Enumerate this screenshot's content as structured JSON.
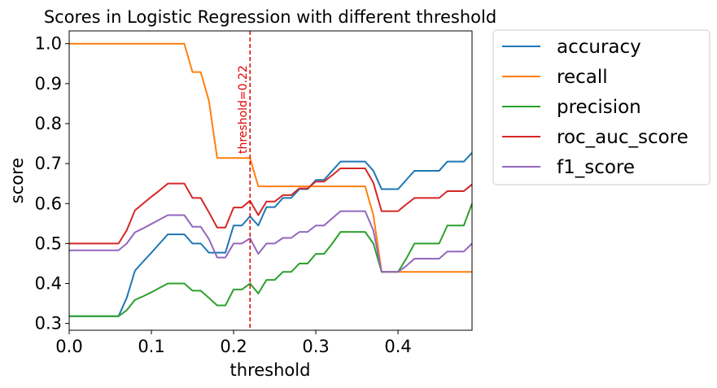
{
  "chart_data": {
    "type": "line",
    "title": "Scores in Logistic Regression with different threshold",
    "xlabel": "threshold",
    "ylabel": "score",
    "xlim": [
      0,
      0.49
    ],
    "ylim": [
      0.283,
      1.032
    ],
    "xticks": [
      0.0,
      0.1,
      0.2,
      0.3,
      0.4
    ],
    "xtick_labels": [
      "0.0",
      "0.1",
      "0.2",
      "0.3",
      "0.4"
    ],
    "yticks": [
      0.3,
      0.4,
      0.5,
      0.6,
      0.7,
      0.8,
      0.9,
      1.0
    ],
    "ytick_labels": [
      "0.3",
      "0.4",
      "0.5",
      "0.6",
      "0.7",
      "0.8",
      "0.9",
      "1.0"
    ],
    "grid": false,
    "legend_position": "outside-right",
    "annotation": {
      "x": 0.22,
      "label": "threshold=0.22",
      "color": "#e00000"
    },
    "x": [
      0.0,
      0.01,
      0.02,
      0.03,
      0.04,
      0.05,
      0.06,
      0.07,
      0.08,
      0.09,
      0.1,
      0.11,
      0.12,
      0.13,
      0.14,
      0.15,
      0.16,
      0.17,
      0.18,
      0.19,
      0.2,
      0.21,
      0.22,
      0.23,
      0.24,
      0.25,
      0.26,
      0.27,
      0.28,
      0.29,
      0.3,
      0.31,
      0.32,
      0.33,
      0.34,
      0.35,
      0.36,
      0.37,
      0.38,
      0.39,
      0.4,
      0.41,
      0.42,
      0.43,
      0.44,
      0.45,
      0.46,
      0.47,
      0.48,
      0.49
    ],
    "series": [
      {
        "name": "accuracy",
        "color": "#1f77b4",
        "values": [
          0.318,
          0.318,
          0.318,
          0.318,
          0.318,
          0.318,
          0.318,
          0.364,
          0.432,
          0.455,
          0.477,
          0.5,
          0.523,
          0.523,
          0.523,
          0.5,
          0.5,
          0.477,
          0.477,
          0.477,
          0.545,
          0.545,
          0.568,
          0.545,
          0.591,
          0.591,
          0.614,
          0.614,
          0.636,
          0.636,
          0.659,
          0.659,
          0.682,
          0.705,
          0.705,
          0.705,
          0.705,
          0.682,
          0.636,
          0.636,
          0.636,
          0.659,
          0.682,
          0.682,
          0.682,
          0.682,
          0.705,
          0.705,
          0.705,
          0.727
        ]
      },
      {
        "name": "recall",
        "color": "#ff7f0e",
        "values": [
          1.0,
          1.0,
          1.0,
          1.0,
          1.0,
          1.0,
          1.0,
          1.0,
          1.0,
          1.0,
          1.0,
          1.0,
          1.0,
          1.0,
          1.0,
          0.929,
          0.929,
          0.857,
          0.714,
          0.714,
          0.714,
          0.714,
          0.714,
          0.643,
          0.643,
          0.643,
          0.643,
          0.643,
          0.643,
          0.643,
          0.643,
          0.643,
          0.643,
          0.643,
          0.643,
          0.643,
          0.643,
          0.571,
          0.429,
          0.429,
          0.429,
          0.429,
          0.429,
          0.429,
          0.429,
          0.429,
          0.429,
          0.429,
          0.429,
          0.429
        ]
      },
      {
        "name": "precision",
        "color": "#2ca02c",
        "values": [
          0.318,
          0.318,
          0.318,
          0.318,
          0.318,
          0.318,
          0.318,
          0.333,
          0.359,
          0.368,
          0.378,
          0.389,
          0.4,
          0.4,
          0.4,
          0.382,
          0.382,
          0.364,
          0.345,
          0.345,
          0.385,
          0.385,
          0.4,
          0.375,
          0.409,
          0.409,
          0.429,
          0.429,
          0.45,
          0.45,
          0.474,
          0.474,
          0.5,
          0.529,
          0.529,
          0.529,
          0.529,
          0.5,
          0.429,
          0.429,
          0.429,
          0.462,
          0.5,
          0.5,
          0.5,
          0.5,
          0.545,
          0.545,
          0.545,
          0.6
        ]
      },
      {
        "name": "roc_auc_score",
        "color": "#d62728",
        "values": [
          0.5,
          0.5,
          0.5,
          0.5,
          0.5,
          0.5,
          0.5,
          0.533,
          0.583,
          0.6,
          0.617,
          0.633,
          0.65,
          0.65,
          0.65,
          0.614,
          0.614,
          0.578,
          0.54,
          0.54,
          0.59,
          0.59,
          0.607,
          0.571,
          0.605,
          0.605,
          0.621,
          0.621,
          0.638,
          0.638,
          0.655,
          0.655,
          0.671,
          0.688,
          0.688,
          0.688,
          0.688,
          0.652,
          0.581,
          0.581,
          0.581,
          0.598,
          0.614,
          0.614,
          0.614,
          0.614,
          0.631,
          0.631,
          0.631,
          0.648
        ]
      },
      {
        "name": "f1_score",
        "color": "#9467bd",
        "values": [
          0.483,
          0.483,
          0.483,
          0.483,
          0.483,
          0.483,
          0.483,
          0.5,
          0.528,
          0.538,
          0.549,
          0.56,
          0.571,
          0.571,
          0.571,
          0.542,
          0.542,
          0.511,
          0.465,
          0.465,
          0.5,
          0.5,
          0.513,
          0.474,
          0.5,
          0.5,
          0.514,
          0.514,
          0.529,
          0.529,
          0.545,
          0.545,
          0.563,
          0.581,
          0.581,
          0.581,
          0.581,
          0.533,
          0.429,
          0.429,
          0.429,
          0.444,
          0.462,
          0.462,
          0.462,
          0.462,
          0.48,
          0.48,
          0.48,
          0.5
        ]
      }
    ]
  }
}
